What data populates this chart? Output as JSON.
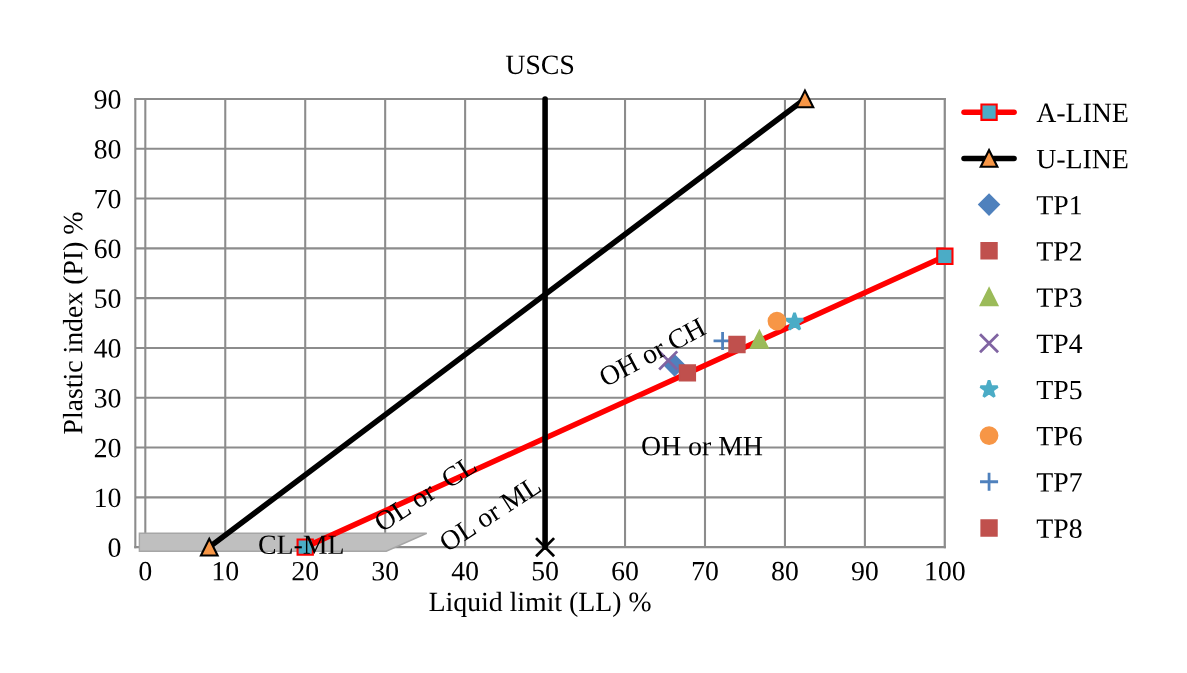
{
  "chart_data": {
    "type": "scatter",
    "title": "USCS",
    "xlabel": "Liquid limit (LL) %",
    "ylabel": "Plastic index (PI) %",
    "xlim": [
      -1.25,
      100
    ],
    "xticks": [
      0,
      10,
      20,
      30,
      40,
      50,
      60,
      70,
      80,
      90,
      100
    ],
    "ylim": [
      0,
      90
    ],
    "yticks": [
      0,
      10,
      20,
      30,
      40,
      50,
      60,
      70,
      80,
      90
    ],
    "grid": true,
    "legend": "right",
    "series": [
      {
        "name": "A-LINE",
        "type": "line",
        "color": "#ff0000",
        "colors": [
          "#4bacc6",
          "#4bacc6"
        ],
        "marker": "square",
        "x": [
          20,
          100
        ],
        "values": [
          0,
          58.4
        ]
      },
      {
        "name": "U-LINE",
        "type": "line",
        "color": "#000000",
        "colors": [
          "#f79646",
          "#f79646"
        ],
        "marker": "triangle",
        "x": [
          8,
          82.5
        ],
        "values": [
          0,
          90
        ]
      },
      {
        "type": "line",
        "color": "#000000",
        "marker": "none",
        "x": [
          50,
          50
        ],
        "values": [
          0,
          90
        ]
      },
      {
        "color": "#000000",
        "marker": "cross",
        "x": [
          50
        ],
        "values": [
          0
        ]
      },
      {
        "name": "TP1",
        "color": "#4f81bd",
        "marker": "diamond",
        "x": [
          66.2
        ],
        "values": [
          36.5
        ]
      },
      {
        "name": "TP2",
        "color": "#c0504d",
        "marker": "square",
        "x": [
          67.8
        ],
        "values": [
          35.0
        ]
      },
      {
        "name": "TP3",
        "color": "#9bbb59",
        "marker": "triangle",
        "x": [
          76.8
        ],
        "values": [
          41.7
        ]
      },
      {
        "name": "TP4",
        "color": "#8064a2",
        "marker": "cross",
        "x": [
          65.4
        ],
        "values": [
          37.5
        ]
      },
      {
        "name": "TP5",
        "color": "#4bacc6",
        "marker": "star",
        "x": [
          81.2
        ],
        "values": [
          45.2
        ]
      },
      {
        "name": "TP6",
        "color": "#f79646",
        "marker": "circle",
        "x": [
          79.0
        ],
        "values": [
          45.4
        ]
      },
      {
        "name": "TP7",
        "color": "#4f81bd",
        "marker": "plus",
        "x": [
          72.2
        ],
        "values": [
          41.4
        ]
      },
      {
        "name": "TP8",
        "color": "#c0504d",
        "marker": "square",
        "x": [
          74.0
        ],
        "values": [
          40.7
        ]
      }
    ],
    "annotations": [
      "OL or  CL",
      "OL or ML",
      "OH or CH",
      "OH or MH",
      "CL-ML"
    ]
  }
}
